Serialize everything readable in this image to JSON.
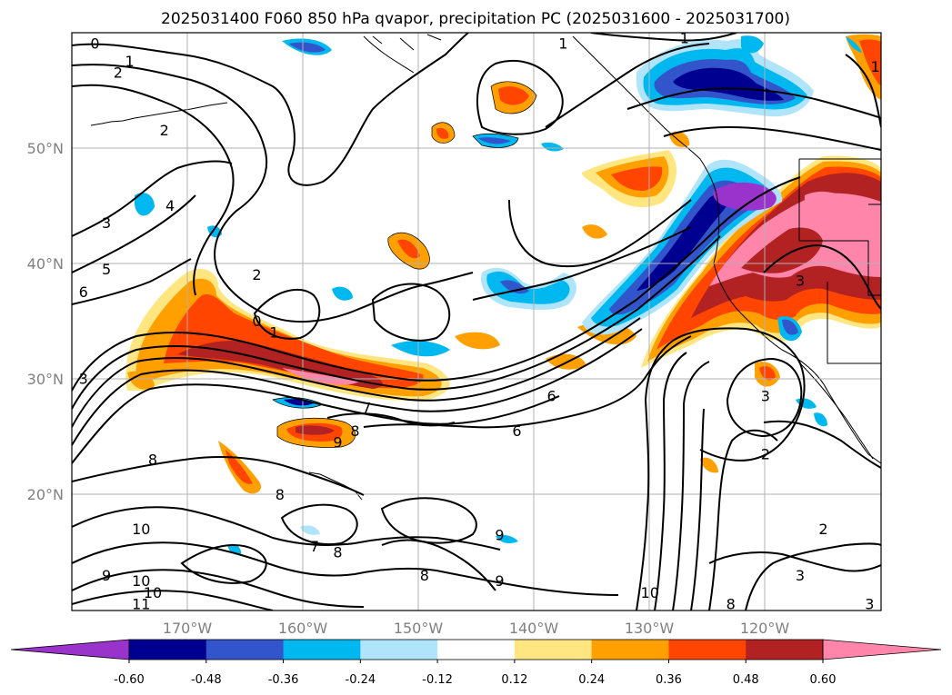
{
  "chart_data": {
    "type": "heatmap",
    "title": "2025031400 F060 850 hPa qvapor, precipitation PC (2025031600 - 2025031700)",
    "xlabel": "",
    "ylabel": "",
    "lon_range": [
      -180,
      -110
    ],
    "lat_range": [
      10,
      60
    ],
    "x_ticks": [
      "170°W",
      "160°W",
      "150°W",
      "140°W",
      "130°W",
      "120°W"
    ],
    "x_tick_values": [
      -170,
      -160,
      -150,
      -140,
      -130,
      -120
    ],
    "y_ticks": [
      "50°N",
      "40°N",
      "30°N",
      "20°N"
    ],
    "y_tick_values": [
      50,
      40,
      30,
      20
    ],
    "grid": true,
    "colorbar": {
      "boundaries": [
        "-0.60",
        "-0.48",
        "-0.36",
        "-0.24",
        "-0.12",
        "0.12",
        "0.24",
        "0.36",
        "0.48",
        "0.60"
      ],
      "colors": [
        "#9933cc",
        "#000090",
        "#3355cc",
        "#00b8f0",
        "#b0e4fa",
        "#ffffff",
        "#ffe680",
        "#ffa000",
        "#ff4500",
        "#b22222",
        "#ff85aa"
      ],
      "extend": "both"
    },
    "contour_labels": [
      {
        "text": "0",
        "lon": -178,
        "lat": 59
      },
      {
        "text": "1",
        "lon": -175,
        "lat": 57.5
      },
      {
        "text": "2",
        "lon": -176,
        "lat": 56.5
      },
      {
        "text": "2",
        "lon": -172,
        "lat": 51.5
      },
      {
        "text": "3",
        "lon": -177,
        "lat": 43.5
      },
      {
        "text": "4",
        "lon": -171.5,
        "lat": 45
      },
      {
        "text": "5",
        "lon": -177,
        "lat": 39.5
      },
      {
        "text": "6",
        "lon": -179,
        "lat": 37.5
      },
      {
        "text": "3",
        "lon": -179,
        "lat": 30
      },
      {
        "text": "2",
        "lon": -164,
        "lat": 39
      },
      {
        "text": "0",
        "lon": -164,
        "lat": 35
      },
      {
        "text": "1",
        "lon": -162.5,
        "lat": 34
      },
      {
        "text": "7",
        "lon": -154.5,
        "lat": 27.5
      },
      {
        "text": "8",
        "lon": -155.5,
        "lat": 25.5
      },
      {
        "text": "9",
        "lon": -157,
        "lat": 24.5
      },
      {
        "text": "6",
        "lon": -138.5,
        "lat": 28.5
      },
      {
        "text": "6",
        "lon": -141.5,
        "lat": 25.5
      },
      {
        "text": "8",
        "lon": -173,
        "lat": 23
      },
      {
        "text": "8",
        "lon": -162,
        "lat": 20
      },
      {
        "text": "10",
        "lon": -174,
        "lat": 17
      },
      {
        "text": "7",
        "lon": -159,
        "lat": 15.5
      },
      {
        "text": "8",
        "lon": -157,
        "lat": 15
      },
      {
        "text": "9",
        "lon": -177,
        "lat": 13
      },
      {
        "text": "10",
        "lon": -174,
        "lat": 12.5
      },
      {
        "text": "10",
        "lon": -173,
        "lat": 11.5
      },
      {
        "text": "11",
        "lon": -174,
        "lat": 10.5
      },
      {
        "text": "8",
        "lon": -149.5,
        "lat": 13
      },
      {
        "text": "9",
        "lon": -143,
        "lat": 16.5
      },
      {
        "text": "9",
        "lon": -143,
        "lat": 12.5
      },
      {
        "text": "10",
        "lon": -130,
        "lat": 11.5
      },
      {
        "text": "8",
        "lon": -123,
        "lat": 10.5
      },
      {
        "text": "2",
        "lon": -120,
        "lat": 23.5
      },
      {
        "text": "3",
        "lon": -120,
        "lat": 28.5
      },
      {
        "text": "3",
        "lon": -117,
        "lat": 38.5
      },
      {
        "text": "2",
        "lon": -115,
        "lat": 17
      },
      {
        "text": "3",
        "lon": -117,
        "lat": 13
      },
      {
        "text": "3",
        "lon": -111,
        "lat": 10.5
      },
      {
        "text": "1",
        "lon": -137.5,
        "lat": 59
      },
      {
        "text": "1",
        "lon": -127,
        "lat": 59.5
      },
      {
        "text": "1",
        "lon": -110.5,
        "lat": 57
      }
    ]
  }
}
